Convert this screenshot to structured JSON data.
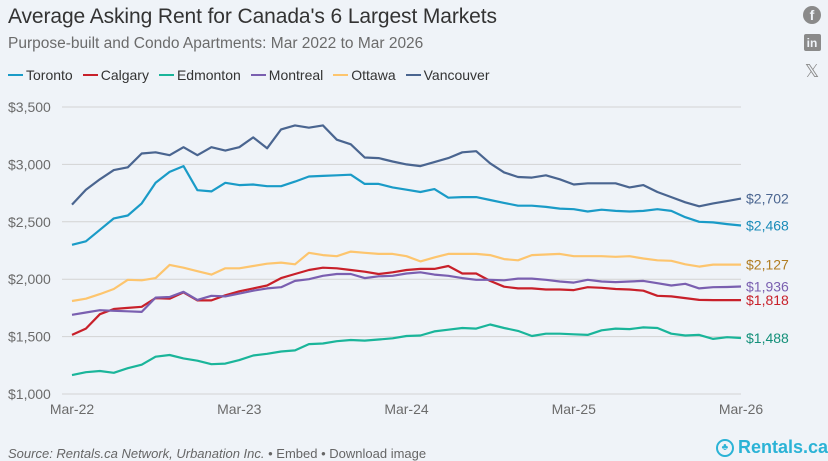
{
  "header": {
    "title": "Average Asking Rent for Canada's 6 Largest Markets",
    "subtitle": "Purpose-built and Condo Apartments: Mar 2022 to Mar 2026"
  },
  "social": {
    "facebook": "f",
    "linkedin": "in",
    "x": "𝕏"
  },
  "footer": {
    "source_label": "Source: Rentals.ca Network, Urbanation Inc.",
    "embed_label": "• Embed",
    "download_label": "• Download image",
    "brand": "Rentals.ca",
    "brand_icon": "maple-leaf-pin-icon"
  },
  "chart_data": {
    "type": "line",
    "title": "Average Asking Rent for Canada's 6 Largest Markets",
    "subtitle": "Purpose-built and Condo Apartments: Mar 2022 to Mar 2026",
    "xlabel": "",
    "ylabel": "",
    "ylim": [
      1000,
      3500
    ],
    "yticks": [
      1000,
      1500,
      2000,
      2500,
      3000,
      3500
    ],
    "ytick_labels": [
      "$1,000",
      "$1,500",
      "$2,000",
      "$2,500",
      "$3,000",
      "$3,500"
    ],
    "x_start": "Mar 2022",
    "x_end": "Mar 2026",
    "x_frequency": "monthly",
    "n_points": 49,
    "xticks": [
      0,
      12,
      24,
      36,
      48
    ],
    "xtick_labels": [
      "Mar-22",
      "Mar-23",
      "Mar-24",
      "Mar-25",
      "Mar-26"
    ],
    "grid": "horizontal",
    "legend_position": "top-left",
    "series": [
      {
        "name": "Toronto",
        "color": "#1a9bc7",
        "label_color": "#1a8bb8",
        "end_label": "$2,468",
        "values": [
          2300,
          2330,
          2430,
          2530,
          2555,
          2660,
          2840,
          2935,
          2985,
          2775,
          2765,
          2840,
          2820,
          2825,
          2810,
          2810,
          2850,
          2895,
          2900,
          2905,
          2910,
          2830,
          2830,
          2800,
          2780,
          2760,
          2785,
          2710,
          2715,
          2715,
          2690,
          2665,
          2640,
          2640,
          2630,
          2615,
          2610,
          2590,
          2605,
          2595,
          2590,
          2595,
          2610,
          2595,
          2540,
          2500,
          2495,
          2480,
          2468
        ]
      },
      {
        "name": "Calgary",
        "color": "#c8202a",
        "label_color": "#c8202a",
        "end_label": "$1,818",
        "values": [
          1515,
          1570,
          1695,
          1740,
          1750,
          1760,
          1835,
          1830,
          1885,
          1815,
          1815,
          1860,
          1895,
          1920,
          1945,
          2010,
          2045,
          2080,
          2100,
          2095,
          2080,
          2065,
          2045,
          2060,
          2080,
          2090,
          2090,
          2115,
          2050,
          2050,
          1985,
          1935,
          1920,
          1920,
          1910,
          1910,
          1905,
          1930,
          1925,
          1915,
          1910,
          1900,
          1855,
          1850,
          1835,
          1820,
          1818,
          1818,
          1818
        ]
      },
      {
        "name": "Edmonton",
        "color": "#1ab59a",
        "label_color": "#14907a",
        "end_label": "$1,488",
        "values": [
          1165,
          1190,
          1200,
          1185,
          1225,
          1255,
          1325,
          1340,
          1310,
          1290,
          1260,
          1265,
          1295,
          1335,
          1350,
          1370,
          1380,
          1435,
          1440,
          1460,
          1470,
          1465,
          1475,
          1485,
          1505,
          1510,
          1545,
          1560,
          1575,
          1570,
          1605,
          1575,
          1550,
          1505,
          1525,
          1525,
          1520,
          1515,
          1555,
          1570,
          1565,
          1580,
          1575,
          1525,
          1510,
          1515,
          1480,
          1495,
          1488
        ]
      },
      {
        "name": "Montreal",
        "color": "#7a5fb0",
        "label_color": "#7a5fb0",
        "end_label": "$1,936",
        "values": [
          1690,
          1710,
          1730,
          1725,
          1720,
          1715,
          1840,
          1845,
          1890,
          1820,
          1855,
          1850,
          1875,
          1900,
          1920,
          1930,
          1985,
          2000,
          2030,
          2045,
          2045,
          2010,
          2025,
          2030,
          2050,
          2060,
          2040,
          2030,
          2010,
          1995,
          1995,
          1990,
          2005,
          2005,
          1995,
          1980,
          1970,
          1995,
          1980,
          1975,
          1980,
          1985,
          1965,
          1945,
          1960,
          1920,
          1930,
          1932,
          1936
        ]
      },
      {
        "name": "Ottawa",
        "color": "#fdc56e",
        "label_color": "#b07d22",
        "end_label": "$2,127",
        "values": [
          1810,
          1830,
          1870,
          1915,
          1995,
          1990,
          2010,
          2125,
          2100,
          2070,
          2040,
          2095,
          2095,
          2115,
          2135,
          2145,
          2130,
          2230,
          2210,
          2200,
          2240,
          2230,
          2220,
          2220,
          2200,
          2155,
          2190,
          2220,
          2220,
          2220,
          2210,
          2175,
          2165,
          2210,
          2215,
          2220,
          2200,
          2200,
          2200,
          2195,
          2200,
          2180,
          2165,
          2160,
          2130,
          2110,
          2127,
          2127,
          2127
        ]
      },
      {
        "name": "Vancouver",
        "color": "#4a6590",
        "label_color": "#4a6590",
        "end_label": "$2,702",
        "values": [
          2650,
          2780,
          2870,
          2950,
          2975,
          3095,
          3105,
          3080,
          3150,
          3080,
          3150,
          3120,
          3150,
          3235,
          3140,
          3305,
          3340,
          3320,
          3340,
          3215,
          3175,
          3060,
          3055,
          3025,
          3000,
          2985,
          3020,
          3055,
          3105,
          3115,
          3010,
          2930,
          2890,
          2885,
          2905,
          2870,
          2825,
          2835,
          2835,
          2835,
          2800,
          2820,
          2760,
          2715,
          2670,
          2635,
          2660,
          2680,
          2702
        ]
      }
    ]
  }
}
